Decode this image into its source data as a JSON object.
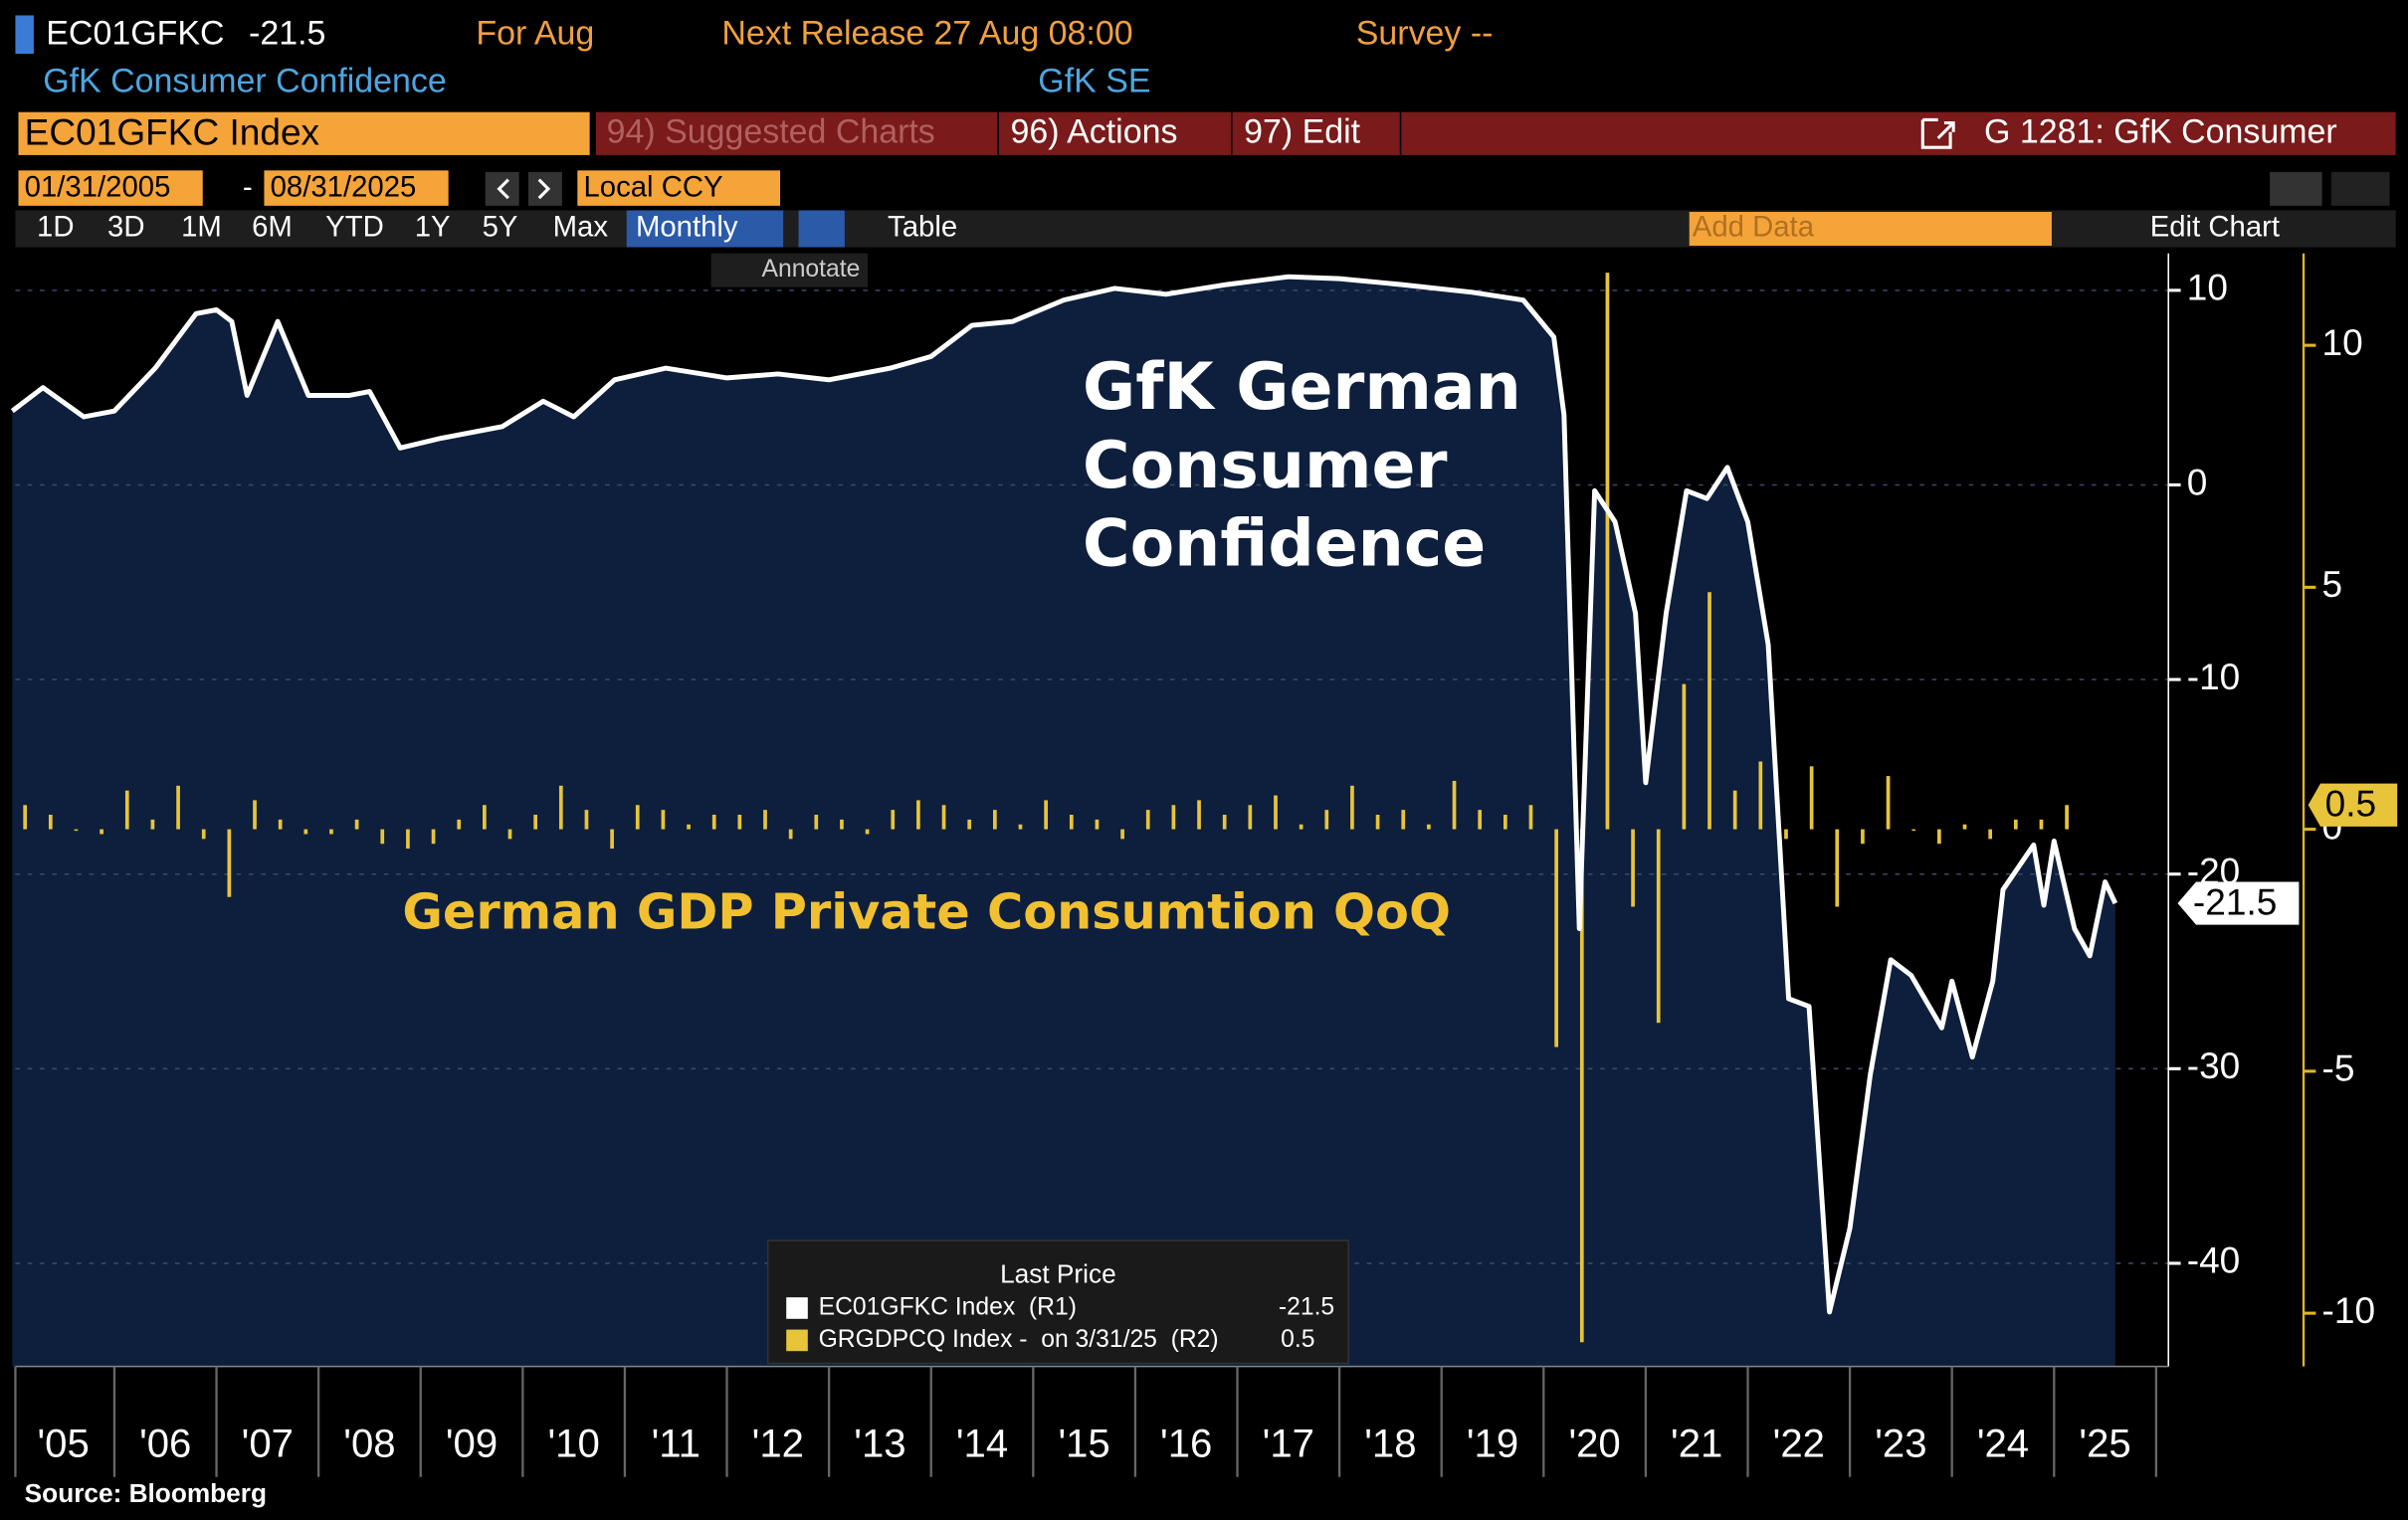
{
  "ui": {
    "ticker": "EC01GFKC",
    "for": "For Aug",
    "next_release": "Next Release 27 Aug 08:00",
    "survey": "Survey --",
    "name": "GfK Consumer Confidence",
    "source_org": "GfK SE",
    "security": "EC01GFKC Index",
    "menu": [
      "94) Suggested Charts",
      "96) Actions",
      "97) Edit"
    ],
    "chart_id": "G 1281: GfK Consumer",
    "start_date": "01/31/2005",
    "date_sep": "-",
    "end_date": "08/31/2025",
    "currency": "Local CCY",
    "ranges": [
      "1D",
      "3D",
      "1M",
      "6M",
      "YTD",
      "1Y",
      "5Y",
      "Max"
    ],
    "frequency": "Monthly",
    "table": "Table",
    "add_data": "Add Data",
    "edit_chart": "Edit Chart",
    "annotate": "Annotate",
    "source": "Source: Bloomberg"
  },
  "chart_data": {
    "type": "line",
    "annotations": [
      [
        "GfK German",
        "Consumer",
        "Confidence"
      ],
      [
        "German GDP Private Consumtion QoQ"
      ]
    ],
    "legend_title": "Last Price",
    "xlim": [
      2005,
      2026
    ],
    "xticks": [
      {
        "value": 2005.5,
        "label": "'05"
      },
      {
        "value": 2006.5,
        "label": "'06"
      },
      {
        "value": 2007.5,
        "label": "'07"
      },
      {
        "value": 2008.5,
        "label": "'08"
      },
      {
        "value": 2009.5,
        "label": "'09"
      },
      {
        "value": 2010.5,
        "label": "'10"
      },
      {
        "value": 2011.5,
        "label": "'11"
      },
      {
        "value": 2012.5,
        "label": "'12"
      },
      {
        "value": 2013.5,
        "label": "'13"
      },
      {
        "value": 2014.5,
        "label": "'14"
      },
      {
        "value": 2015.5,
        "label": "'15"
      },
      {
        "value": 2016.5,
        "label": "'16"
      },
      {
        "value": 2017.5,
        "label": "'17"
      },
      {
        "value": 2018.5,
        "label": "'18"
      },
      {
        "value": 2019.5,
        "label": "'19"
      },
      {
        "value": 2020.5,
        "label": "'20"
      },
      {
        "value": 2021.5,
        "label": "'21"
      },
      {
        "value": 2022.5,
        "label": "'22"
      },
      {
        "value": 2023.5,
        "label": "'23"
      },
      {
        "value": 2024.5,
        "label": "'24"
      },
      {
        "value": 2025.5,
        "label": "'25"
      }
    ],
    "ylim": [
      -45.3,
      11.9
    ],
    "yticks": [
      -40,
      -30,
      -20,
      -10,
      0,
      10
    ],
    "y2lim": [
      -11.1,
      11.9
    ],
    "y2ticks": [
      -10,
      -5,
      0,
      5,
      10
    ],
    "grid": true,
    "series": [
      {
        "name": "EC01GFKC Index  (R1)",
        "color": "#ffffff",
        "fill": "#0d1f3c",
        "axis": "y",
        "x": [
          2005.0,
          2005.3,
          2005.7,
          2006.0,
          2006.4,
          2006.8,
          2007.0,
          2007.15,
          2007.3,
          2007.6,
          2007.9,
          2008.3,
          2008.5,
          2008.8,
          2009.2,
          2009.8,
          2010.2,
          2010.5,
          2010.9,
          2011.4,
          2012.0,
          2012.5,
          2013.0,
          2013.6,
          2014.0,
          2014.4,
          2014.8,
          2015.3,
          2015.8,
          2016.3,
          2016.9,
          2017.5,
          2018.0,
          2018.6,
          2019.3,
          2019.8,
          2020.1,
          2020.2,
          2020.35,
          2020.5,
          2020.7,
          2020.9,
          2021.0,
          2021.2,
          2021.4,
          2021.6,
          2021.8,
          2022.0,
          2022.2,
          2022.4,
          2022.6,
          2022.8,
          2023.0,
          2023.2,
          2023.4,
          2023.6,
          2023.9,
          2024.0,
          2024.2,
          2024.4,
          2024.5,
          2024.8,
          2024.9,
          2025.0,
          2025.2,
          2025.35,
          2025.5,
          2025.6
        ],
        "values": [
          3.8,
          5,
          3.5,
          3.8,
          6,
          8.8,
          9,
          8.4,
          4.6,
          8.4,
          4.6,
          4.6,
          4.8,
          1.9,
          2.4,
          3,
          4.3,
          3.5,
          5.4,
          6,
          5.5,
          5.7,
          5.4,
          6,
          6.6,
          8.2,
          8.4,
          9.5,
          10.1,
          9.8,
          10.3,
          10.7,
          10.6,
          10.3,
          9.9,
          9.5,
          7.6,
          3.6,
          -22.8,
          -0.3,
          -1.9,
          -6.6,
          -15.3,
          -6.6,
          -0.3,
          -0.7,
          0.9,
          -1.9,
          -8.2,
          -26.4,
          -26.8,
          -42.5,
          -38.2,
          -30.3,
          -24.4,
          -25.2,
          -27.9,
          -25.5,
          -29.4,
          -25.5,
          -20.8,
          -18.5,
          -21.6,
          -18.3,
          -22.8,
          -24.2,
          -20.4,
          -21.5
        ]
      },
      {
        "name": "GRGDPCQ Index -  on 3/31/25  (R2)",
        "color": "#e8c43a",
        "type": "bar",
        "axis": "y2",
        "x": [
          2005.125,
          2005.375,
          2005.625,
          2005.875,
          2006.125,
          2006.375,
          2006.625,
          2006.875,
          2007.125,
          2007.375,
          2007.625,
          2007.875,
          2008.125,
          2008.375,
          2008.625,
          2008.875,
          2009.125,
          2009.375,
          2009.625,
          2009.875,
          2010.125,
          2010.375,
          2010.625,
          2010.875,
          2011.125,
          2011.375,
          2011.625,
          2011.875,
          2012.125,
          2012.375,
          2012.625,
          2012.875,
          2013.125,
          2013.375,
          2013.625,
          2013.875,
          2014.125,
          2014.375,
          2014.625,
          2014.875,
          2015.125,
          2015.375,
          2015.625,
          2015.875,
          2016.125,
          2016.375,
          2016.625,
          2016.875,
          2017.125,
          2017.375,
          2017.625,
          2017.875,
          2018.125,
          2018.375,
          2018.625,
          2018.875,
          2019.125,
          2019.375,
          2019.625,
          2019.875,
          2020.125,
          2020.375,
          2020.625,
          2020.875,
          2021.125,
          2021.375,
          2021.625,
          2021.875,
          2022.125,
          2022.375,
          2022.625,
          2022.875,
          2023.125,
          2023.375,
          2023.625,
          2023.875,
          2024.125,
          2024.375,
          2024.625,
          2024.875,
          2025.125
        ],
        "values": [
          0.5,
          0.3,
          0,
          -0.1,
          0.8,
          0.2,
          0.9,
          -0.2,
          -1.4,
          0.6,
          0.2,
          -0.1,
          -0.1,
          0.2,
          -0.3,
          -0.4,
          -0.3,
          0.2,
          0.5,
          -0.2,
          0.3,
          0.9,
          0.4,
          -0.4,
          0.5,
          0.4,
          0.1,
          0.3,
          0.3,
          0.4,
          -0.2,
          0.3,
          0.2,
          -0.1,
          0.4,
          0.6,
          0.5,
          0.2,
          0.4,
          0.1,
          0.6,
          0.3,
          0.2,
          -0.2,
          0.4,
          0.5,
          0.6,
          0.3,
          0.5,
          0.7,
          0.1,
          0.4,
          0.9,
          0.3,
          0.4,
          0.1,
          1.0,
          0.4,
          0.3,
          0.5,
          -4.5,
          -10.6,
          11.5,
          -1.6,
          -4,
          3,
          4.9,
          0.8,
          1.4,
          -0.2,
          1.3,
          -1.6,
          -0.3,
          1.1,
          0,
          -0.3,
          0.1,
          -0.2,
          0.2,
          0.2,
          0.5
        ]
      }
    ]
  }
}
